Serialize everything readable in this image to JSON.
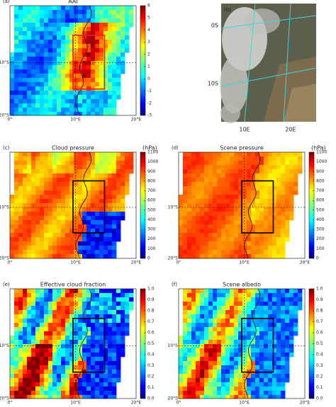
{
  "panels": [
    {
      "label": "(a)",
      "title": "AAI",
      "box_color": "#e0202a",
      "colorbar": {
        "lim": [
          -3,
          6
        ],
        "ticks": [
          -3,
          -2,
          -1,
          0,
          1,
          2,
          3,
          4,
          5,
          6
        ]
      },
      "lon_ticks": [
        "0°",
        "10°E",
        "20°E"
      ],
      "lat_ticks": [
        "10°S",
        "20°S"
      ]
    },
    {
      "label": "(b)",
      "lat_labels": [
        "0S",
        "10S"
      ],
      "lon_labels": [
        "10E",
        "20E"
      ]
    },
    {
      "label": "(c)",
      "title": "Cloud pressure",
      "unit": "(hPa)",
      "box_color": "#000000",
      "colorbar": {
        "lim": [
          0,
          1100
        ],
        "ticks": [
          0,
          100,
          200,
          300,
          400,
          500,
          600,
          700,
          800,
          900,
          1000,
          1100
        ]
      },
      "lon_ticks": [
        "0°",
        "10°E",
        "20°E"
      ],
      "lat_ticks": [
        "10°S",
        "20°S"
      ]
    },
    {
      "label": "(d)",
      "title": "Scene pressure",
      "unit": "(hPa)",
      "box_color": "#000000",
      "colorbar": {
        "lim": [
          0,
          1100
        ],
        "ticks": [
          0,
          100,
          200,
          300,
          400,
          500,
          600,
          700,
          800,
          900,
          1000,
          1100
        ]
      },
      "lon_ticks": [
        "0°",
        "10°E",
        "20°E"
      ],
      "lat_ticks": [
        "10°S",
        "20°S"
      ]
    },
    {
      "label": "(e)",
      "title": "Effective cloud fraction",
      "box_color": "#000000",
      "colorbar": {
        "lim": [
          0,
          1
        ],
        "ticks": [
          {
            "value": 0,
            "label": "0.0"
          },
          0.1,
          0.2,
          0.3,
          0.4,
          0.5,
          0.6,
          0.7,
          0.8,
          0.9,
          {
            "value": 1,
            "label": "1.0"
          }
        ]
      },
      "lon_ticks": [
        "0°",
        "10°E",
        "20°E"
      ],
      "lat_ticks": [
        "10°S",
        "20°S"
      ]
    },
    {
      "label": "(f)",
      "title": "Scene albedo",
      "box_color": "#000000",
      "colorbar": {
        "lim": [
          0,
          1
        ],
        "ticks": [
          {
            "value": 0,
            "label": "0.0"
          },
          0.1,
          0.2,
          0.3,
          0.4,
          0.5,
          0.6,
          0.7,
          0.8,
          0.9,
          {
            "value": 1,
            "label": "1.0"
          }
        ]
      },
      "lon_ticks": [
        "0°",
        "10°E",
        "20°E"
      ],
      "lat_ticks": [
        "10°S",
        "20°S"
      ]
    }
  ]
}
